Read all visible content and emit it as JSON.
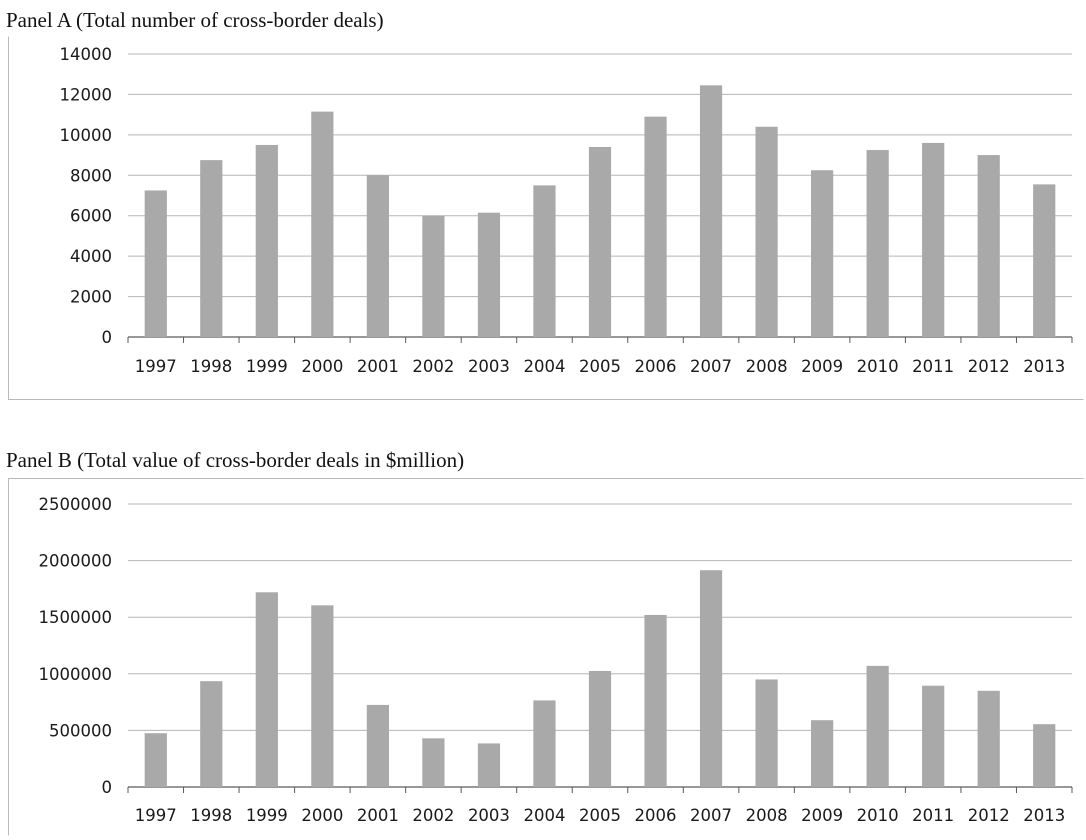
{
  "chart_data": [
    {
      "type": "bar",
      "title": "Panel A (Total number of cross-border deals)",
      "xlabel": "",
      "ylabel": "",
      "categories": [
        "1997",
        "1998",
        "1999",
        "2000",
        "2001",
        "2002",
        "2003",
        "2004",
        "2005",
        "2006",
        "2007",
        "2008",
        "2009",
        "2010",
        "2011",
        "2012",
        "2013"
      ],
      "values": [
        7250,
        8750,
        9500,
        11150,
        8000,
        6000,
        6150,
        7500,
        9400,
        10900,
        12450,
        10400,
        8250,
        9250,
        9600,
        9000,
        7550
      ],
      "ylim": [
        0,
        14000
      ],
      "yticks": [
        "0",
        "2000",
        "4000",
        "6000",
        "8000",
        "10000",
        "12000",
        "14000"
      ],
      "grid": true,
      "bar_color": "#a9a9a9"
    },
    {
      "type": "bar",
      "title": "Panel B (Total value of cross-border deals in $million)",
      "xlabel": "",
      "ylabel": "",
      "categories": [
        "1997",
        "1998",
        "1999",
        "2000",
        "2001",
        "2002",
        "2003",
        "2004",
        "2005",
        "2006",
        "2007",
        "2008",
        "2009",
        "2010",
        "2011",
        "2012",
        "2013"
      ],
      "values": [
        475000,
        935000,
        1720000,
        1605000,
        725000,
        430000,
        385000,
        765000,
        1025000,
        1520000,
        1915000,
        950000,
        590000,
        1070000,
        895000,
        850000,
        555000
      ],
      "ylim": [
        0,
        2500000
      ],
      "yticks": [
        "0",
        "500000",
        "1000000",
        "1500000",
        "2000000",
        "2500000"
      ],
      "grid": true,
      "bar_color": "#a9a9a9"
    }
  ]
}
